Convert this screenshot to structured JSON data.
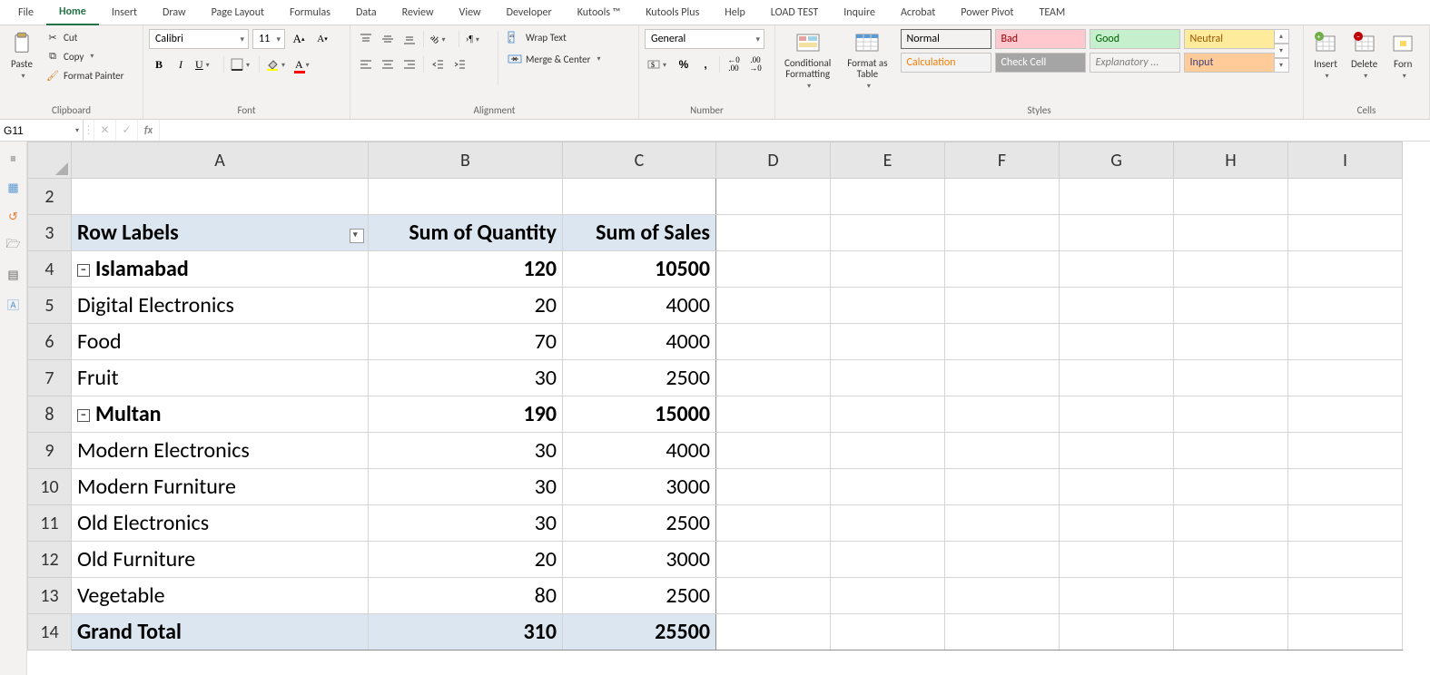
{
  "tabs": {
    "items": [
      "File",
      "Home",
      "Insert",
      "Draw",
      "Page Layout",
      "Formulas",
      "Data",
      "Review",
      "View",
      "Developer",
      "Kutools ™",
      "Kutools Plus",
      "Help",
      "LOAD TEST",
      "Inquire",
      "Acrobat",
      "Power Pivot",
      "TEAM"
    ],
    "active": "Home"
  },
  "ribbon": {
    "clipboard": {
      "title": "Clipboard",
      "paste": "Paste",
      "cut": "Cut",
      "copy": "Copy",
      "format_painter": "Format Painter"
    },
    "font": {
      "title": "Font",
      "font_name": "Calibri",
      "font_size": "11"
    },
    "alignment": {
      "title": "Alignment",
      "wrap_text": "Wrap Text",
      "merge_center": "Merge & Center"
    },
    "number": {
      "title": "Number",
      "format": "General"
    },
    "styles": {
      "title": "Styles",
      "conditional_formatting": "Conditional Formatting",
      "format_as_table": "Format as Table",
      "row1": [
        "Normal",
        "Bad",
        "Good",
        "Neutral"
      ],
      "row2": [
        "Calculation",
        "Check Cell",
        "Explanatory ...",
        "Input"
      ]
    },
    "cells": {
      "title": "Cells",
      "insert": "Insert",
      "delete": "Delete",
      "format": "Forn"
    }
  },
  "fx": {
    "name_box": "G11",
    "formula": ""
  },
  "sheet": {
    "columns": [
      "A",
      "B",
      "C",
      "D",
      "E",
      "F",
      "G",
      "H",
      "I"
    ],
    "first_row_number": 2,
    "pivot": {
      "header": {
        "row_labels": "Row Labels",
        "col1": "Sum of Quantity",
        "col2": "Sum of Sales"
      },
      "groups": [
        {
          "label": "Islamabad",
          "qty": "120",
          "sales": "10500",
          "items": [
            {
              "label": "Digital Electronics",
              "qty": "20",
              "sales": "4000"
            },
            {
              "label": "Food",
              "qty": "70",
              "sales": "4000"
            },
            {
              "label": "Fruit",
              "qty": "30",
              "sales": "2500"
            }
          ]
        },
        {
          "label": "Multan",
          "qty": "190",
          "sales": "15000",
          "items": [
            {
              "label": "Modern Electronics",
              "qty": "30",
              "sales": "4000"
            },
            {
              "label": "Modern Furniture",
              "qty": "30",
              "sales": "3000"
            },
            {
              "label": "Old Electronics",
              "qty": "30",
              "sales": "2500"
            },
            {
              "label": "Old Furniture",
              "qty": "20",
              "sales": "3000"
            },
            {
              "label": "Vegetable",
              "qty": "80",
              "sales": "2500"
            }
          ]
        }
      ],
      "grand_total": {
        "label": "Grand Total",
        "qty": "310",
        "sales": "25500"
      }
    }
  }
}
